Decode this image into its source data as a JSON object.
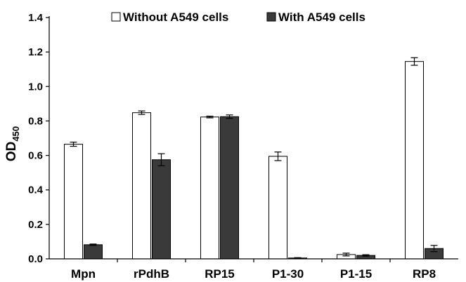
{
  "chart_data": {
    "type": "bar",
    "ylabel": "OD",
    "ylabel_sub": "450",
    "ylim": [
      0,
      1.4
    ],
    "yticks": [
      "0.0",
      "0.2",
      "0.4",
      "0.6",
      "0.8",
      "1.0",
      "1.2",
      "1.4"
    ],
    "categories": [
      "Mpn",
      "rPdhB",
      "RP15",
      "P1-30",
      "P1-15",
      "RP8"
    ],
    "series": [
      {
        "name": "Without A549 cells",
        "color": "#ffffff",
        "values": [
          0.665,
          0.848,
          0.823,
          0.595,
          0.025,
          1.145
        ],
        "errors": [
          0.012,
          0.01,
          0.005,
          0.025,
          0.008,
          0.022
        ]
      },
      {
        "name": "With A549 cells",
        "color": "#3a3a3a",
        "values": [
          0.082,
          0.575,
          0.825,
          0.005,
          0.02,
          0.06
        ],
        "errors": [
          0.004,
          0.035,
          0.01,
          0.002,
          0.004,
          0.018
        ]
      }
    ],
    "grid": false,
    "legend_position": "top"
  }
}
